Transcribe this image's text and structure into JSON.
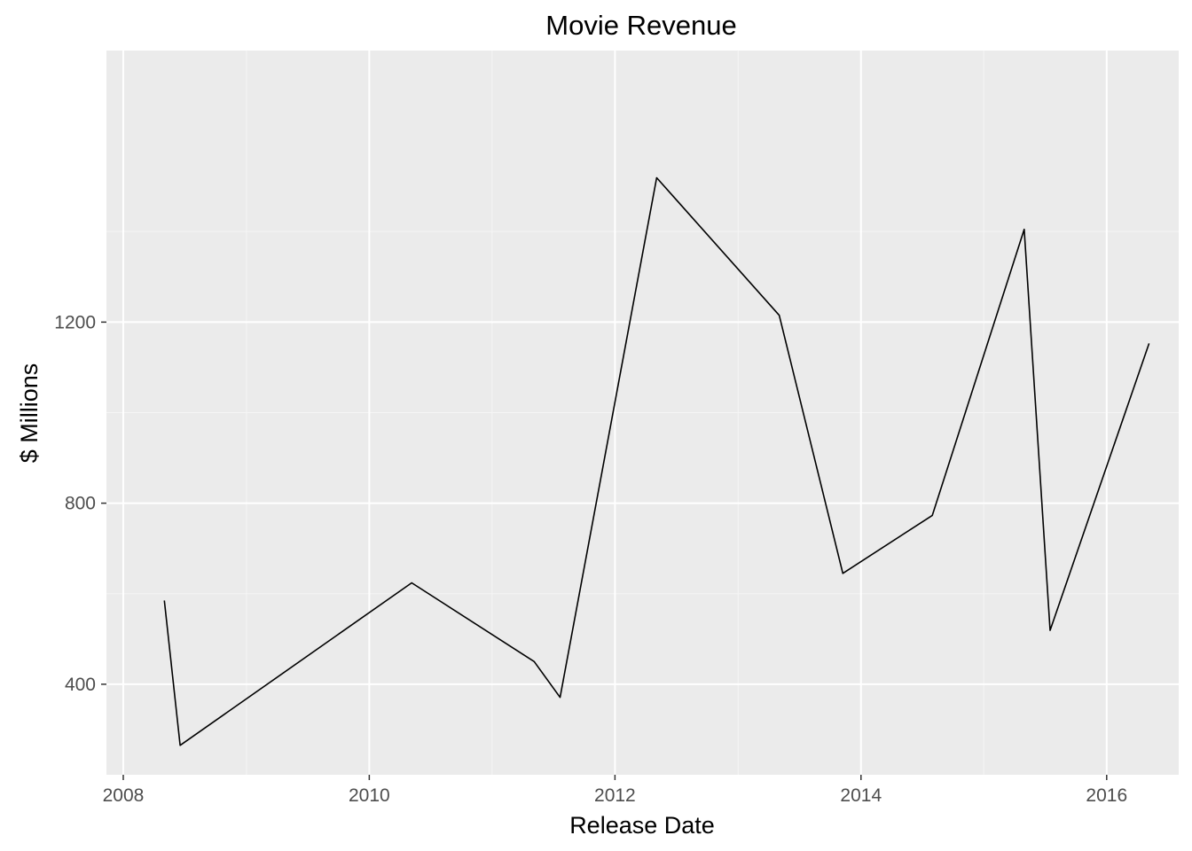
{
  "chart_data": {
    "type": "line",
    "title": "Movie Revenue",
    "xlabel": "Release Date",
    "ylabel": "$ Millions",
    "x_axis_type": "date",
    "xlim": [
      "2007-11-12",
      "2016-08-02"
    ],
    "ylim": [
      200,
      1800
    ],
    "x_ticks": [
      {
        "value": "2008-01-01",
        "label": "2008"
      },
      {
        "value": "2010-01-01",
        "label": "2010"
      },
      {
        "value": "2012-01-01",
        "label": "2012"
      },
      {
        "value": "2014-01-01",
        "label": "2014"
      },
      {
        "value": "2016-01-01",
        "label": "2016"
      }
    ],
    "y_ticks": [
      {
        "value": 400,
        "label": "400"
      },
      {
        "value": 800,
        "label": "800"
      },
      {
        "value": 1200,
        "label": "1200"
      }
    ],
    "x_minor_ticks": [
      "2009-01-01",
      "2011-01-01",
      "2013-01-01",
      "2015-01-01"
    ],
    "y_minor_ticks": [
      600,
      1000,
      1400
    ],
    "grid": true,
    "legend": "none",
    "series": [
      {
        "points": [
          {
            "x": "2008-05-02",
            "y": 585
          },
          {
            "x": "2008-06-18",
            "y": 265
          },
          {
            "x": "2010-05-07",
            "y": 624
          },
          {
            "x": "2011-05-06",
            "y": 450
          },
          {
            "x": "2011-07-22",
            "y": 371
          },
          {
            "x": "2012-05-04",
            "y": 1519
          },
          {
            "x": "2013-05-03",
            "y": 1215
          },
          {
            "x": "2013-11-08",
            "y": 645
          },
          {
            "x": "2014-08-01",
            "y": 773
          },
          {
            "x": "2015-05-01",
            "y": 1405
          },
          {
            "x": "2015-07-17",
            "y": 519
          },
          {
            "x": "2016-05-06",
            "y": 1153
          }
        ]
      }
    ],
    "colors": {
      "panel_background": "#ebebeb",
      "major_grid": "#ffffff",
      "minor_grid": "#f5f5f5",
      "line": "#000000",
      "tick_label": "#4d4d4d",
      "tick_mark": "#333333"
    }
  }
}
